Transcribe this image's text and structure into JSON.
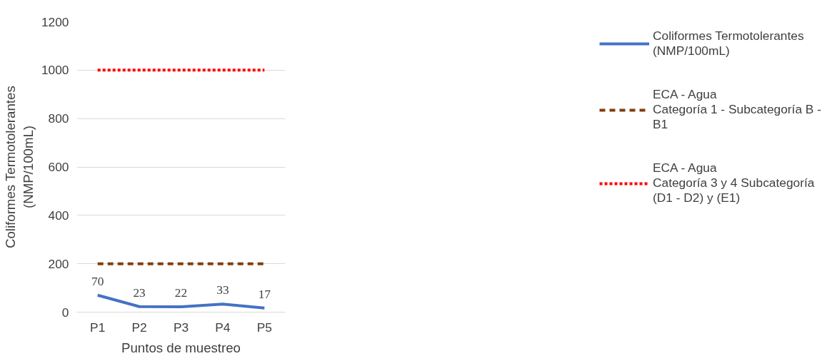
{
  "chart_data": {
    "type": "line",
    "xlabel": "Puntos de muestreo",
    "ylabel": "Coliformes Termotolerantes\n(NMP/100mL)",
    "categories": [
      "P1",
      "P2",
      "P3",
      "P4",
      "P5"
    ],
    "series": [
      {
        "name": "Coliformes Termotolerantes (NMP/100mL)",
        "color": "#4472c4",
        "values": [
          70,
          23,
          22,
          33,
          17
        ],
        "value_labels": [
          "70",
          "23",
          "22",
          "33",
          "17"
        ],
        "line_style": "solid"
      },
      {
        "name": "ECA - Agua\nCategoría 1 - Subcategoría B - B1",
        "color": "#843c0c",
        "values": [
          200,
          200,
          200,
          200,
          200
        ],
        "line_style": "dashed"
      },
      {
        "name": "ECA - Agua\nCategoría 3 y 4 Subcategoría (D1 - D2) y (E1)",
        "color": "#ff0000",
        "values": [
          1000,
          1000,
          1000,
          1000,
          1000
        ],
        "line_style": "dotted"
      }
    ],
    "ylim": [
      0,
      1200
    ],
    "yticks": [
      0,
      200,
      400,
      600,
      800,
      1000,
      1200
    ],
    "grid": "y",
    "legend": "right"
  }
}
